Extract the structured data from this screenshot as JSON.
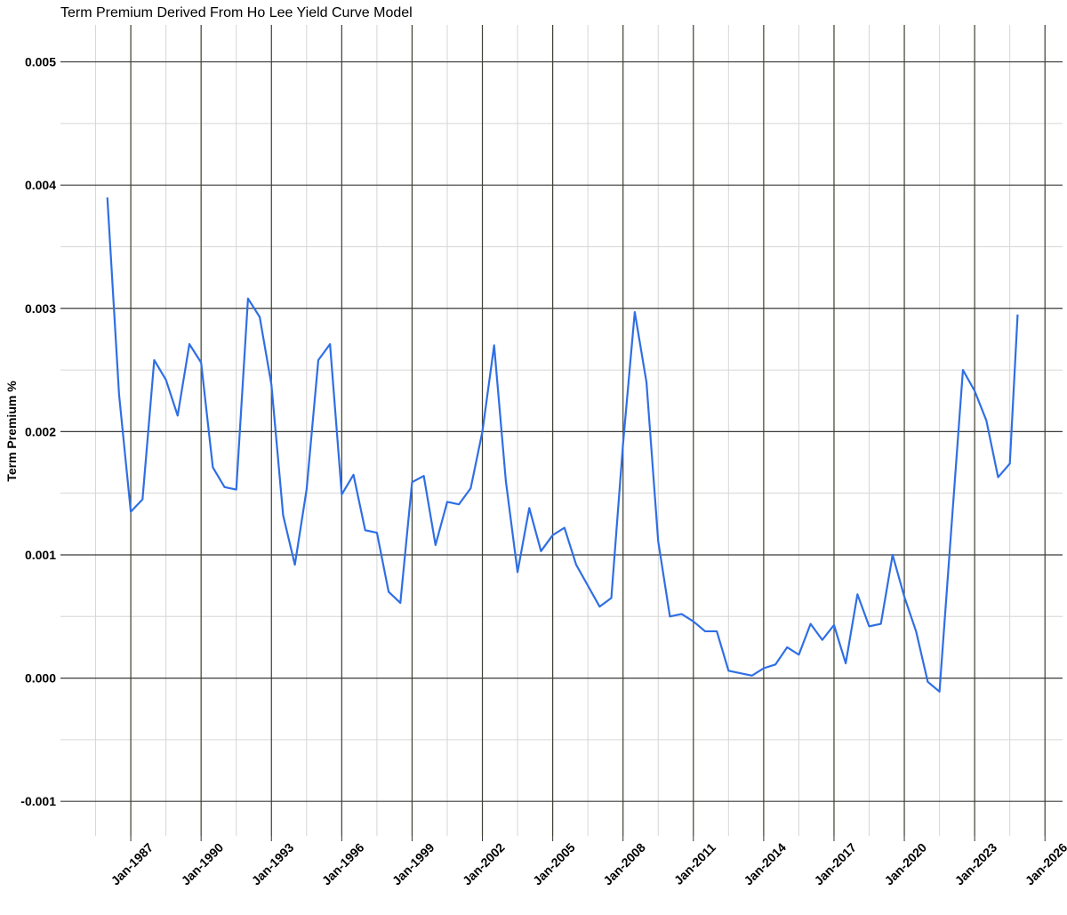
{
  "chart_data": {
    "type": "line",
    "title": "Term Premium Derived From Ho Lee Yield Curve Model",
    "y_label": "Term Premium %",
    "x": [
      "1986-01",
      "1986-07",
      "1987-01",
      "1987-07",
      "1988-01",
      "1988-07",
      "1989-01",
      "1989-07",
      "1990-01",
      "1990-07",
      "1991-01",
      "1991-07",
      "1992-01",
      "1992-07",
      "1993-01",
      "1993-07",
      "1994-01",
      "1994-07",
      "1995-01",
      "1995-07",
      "1996-01",
      "1996-07",
      "1997-01",
      "1997-07",
      "1998-01",
      "1998-07",
      "1999-01",
      "1999-07",
      "2000-01",
      "2000-07",
      "2001-01",
      "2001-07",
      "2002-01",
      "2002-07",
      "2003-01",
      "2003-07",
      "2004-01",
      "2004-07",
      "2005-01",
      "2005-07",
      "2006-01",
      "2006-07",
      "2007-01",
      "2007-07",
      "2008-01",
      "2008-07",
      "2009-01",
      "2009-07",
      "2010-01",
      "2010-07",
      "2011-01",
      "2011-07",
      "2012-01",
      "2012-07",
      "2013-01",
      "2013-07",
      "2014-01",
      "2014-07",
      "2015-01",
      "2015-07",
      "2016-01",
      "2016-07",
      "2017-01",
      "2017-07",
      "2018-01",
      "2018-07",
      "2019-01",
      "2019-07",
      "2020-01",
      "2020-07",
      "2021-01",
      "2021-07",
      "2022-01",
      "2022-07",
      "2023-01",
      "2023-07",
      "2024-01",
      "2024-07",
      "2024-11"
    ],
    "series": [
      {
        "name": "Term Premium",
        "color": "#2f6fe4",
        "values": [
          0.0039,
          0.0023,
          0.00135,
          0.00145,
          0.00258,
          0.00242,
          0.00213,
          0.00271,
          0.00256,
          0.00171,
          0.00155,
          0.00153,
          0.00308,
          0.00293,
          0.00238,
          0.00132,
          0.00092,
          0.00153,
          0.00258,
          0.00271,
          0.00149,
          0.00165,
          0.0012,
          0.00118,
          0.0007,
          0.00061,
          0.00159,
          0.00164,
          0.00108,
          0.00143,
          0.00141,
          0.00154,
          0.002,
          0.0027,
          0.0016,
          0.00086,
          0.00138,
          0.00103,
          0.00116,
          0.00122,
          0.00092,
          0.00075,
          0.00058,
          0.00065,
          0.0019,
          0.00297,
          0.0024,
          0.00111,
          0.0005,
          0.00052,
          0.00046,
          0.00038,
          0.00038,
          6e-05,
          4e-05,
          2e-05,
          8e-05,
          0.00011,
          0.00025,
          0.00019,
          0.00044,
          0.00031,
          0.00043,
          0.00012,
          0.00068,
          0.00042,
          0.00044,
          0.001,
          0.00066,
          0.00038,
          -3e-05,
          -0.00011,
          0.0012,
          0.0025,
          0.00233,
          0.00209,
          0.00163,
          0.00174,
          0.00295
        ]
      }
    ],
    "xlim": [
      "1984-01",
      "2026-10"
    ],
    "xticks": [
      {
        "value": "1987-01",
        "label": "Jan-1987"
      },
      {
        "value": "1990-01",
        "label": "Jan-1990"
      },
      {
        "value": "1993-01",
        "label": "Jan-1993"
      },
      {
        "value": "1996-01",
        "label": "Jan-1996"
      },
      {
        "value": "1999-01",
        "label": "Jan-1999"
      },
      {
        "value": "2002-01",
        "label": "Jan-2002"
      },
      {
        "value": "2005-01",
        "label": "Jan-2005"
      },
      {
        "value": "2008-01",
        "label": "Jan-2008"
      },
      {
        "value": "2011-01",
        "label": "Jan-2011"
      },
      {
        "value": "2014-01",
        "label": "Jan-2014"
      },
      {
        "value": "2017-01",
        "label": "Jan-2017"
      },
      {
        "value": "2020-01",
        "label": "Jan-2020"
      },
      {
        "value": "2023-01",
        "label": "Jan-2023"
      },
      {
        "value": "2026-01",
        "label": "Jan-2026"
      }
    ],
    "ylim": [
      -0.00128,
      0.0053
    ],
    "yticks": [
      -0.001,
      {
        "value": 0,
        "label": "0.000"
      },
      0.001,
      0.002,
      0.003,
      0.004,
      0.005
    ],
    "grid": true
  }
}
